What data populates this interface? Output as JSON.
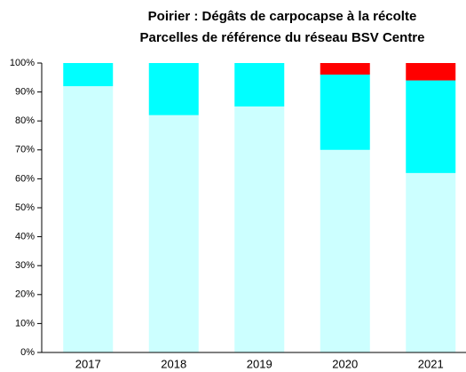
{
  "chart_data": {
    "type": "stacked_bar",
    "title": "Poirier : Dégâts de carpocapse à la récolte",
    "subtitle": "Parcelles de référence du réseau BSV Centre",
    "categories": [
      "2017",
      "2018",
      "2019",
      "2020",
      "2021"
    ],
    "series": [
      {
        "color": "#ccffff",
        "values": [
          92,
          82,
          85,
          70,
          62
        ]
      },
      {
        "color": "#00ffff",
        "values": [
          8,
          18,
          15,
          26,
          32
        ]
      },
      {
        "color": "#ff0000",
        "values": [
          0,
          0,
          0,
          4,
          6
        ]
      }
    ],
    "ylim": [
      0,
      100
    ],
    "yticks": [
      {
        "value": 0,
        "label": "0%"
      },
      {
        "value": 10,
        "label": "10%"
      },
      {
        "value": 20,
        "label": "20%"
      },
      {
        "value": 30,
        "label": "30%"
      },
      {
        "value": 40,
        "label": "40%"
      },
      {
        "value": 50,
        "label": "50%"
      },
      {
        "value": 60,
        "label": "60%"
      },
      {
        "value": 70,
        "label": "70%"
      },
      {
        "value": 80,
        "label": "80%"
      },
      {
        "value": 90,
        "label": "90%"
      },
      {
        "value": 100,
        "label": "100%"
      }
    ]
  }
}
